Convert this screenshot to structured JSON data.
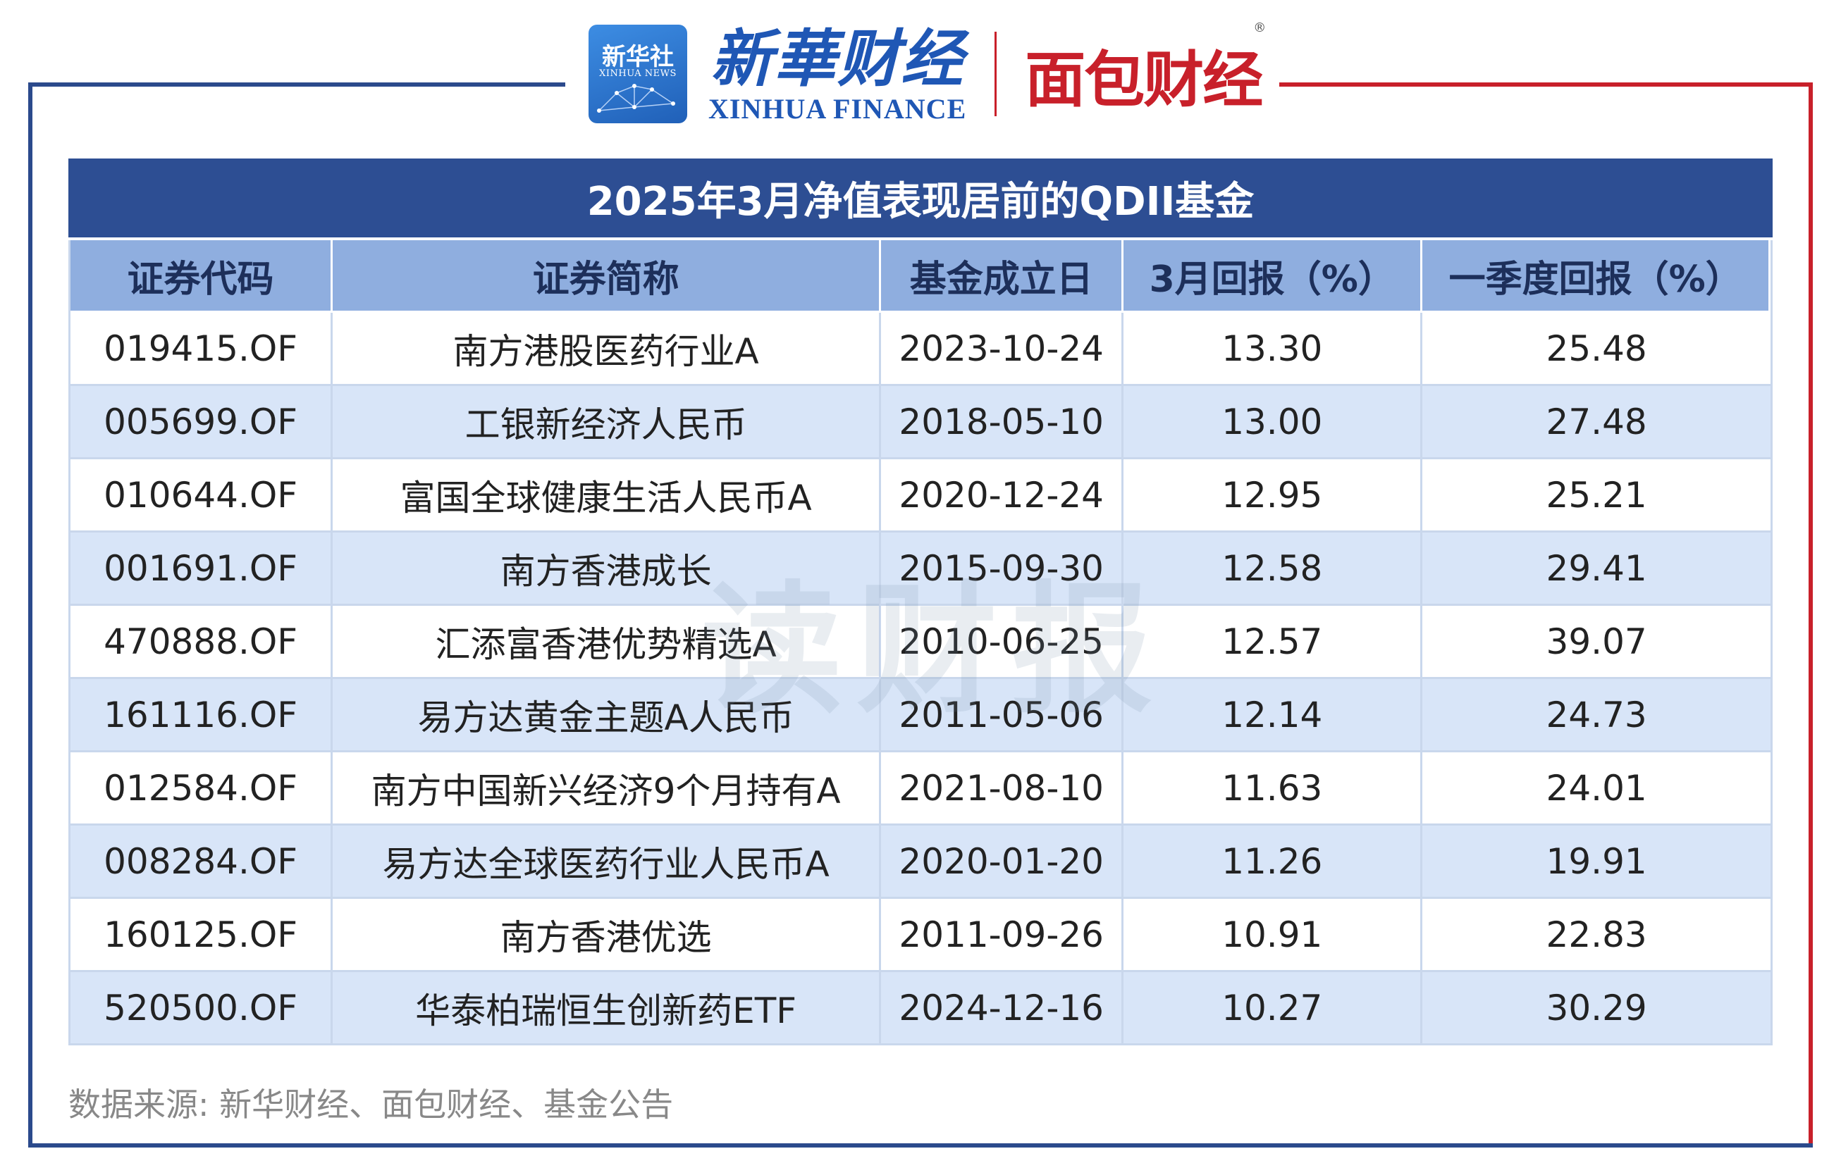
{
  "logos": {
    "xinhua_badge_cn": "新华社",
    "xinhua_badge_en": "XINHUA NEWS",
    "xinhua_finance_cn": "新華财经",
    "xinhua_finance_en": "XINHUA FINANCE",
    "mianbao_cn": "面包财经",
    "registered_mark": "®"
  },
  "watermark": "读财报",
  "colors": {
    "title_bg": "#2d4e93",
    "header_bg": "#8faedf",
    "row_alt_bg": "#d8e5f8",
    "frame_blue": "#2b4a8c",
    "frame_red": "#c8202a"
  },
  "chart_data": {
    "type": "table",
    "title": "2025年3月净值表现居前的QDII基金",
    "columns": [
      "证券代码",
      "证券简称",
      "基金成立日",
      "3月回报（%）",
      "一季度回报（%）"
    ],
    "rows": [
      [
        "019415.OF",
        "南方港股医药行业A",
        "2023-10-24",
        "13.30",
        "25.48"
      ],
      [
        "005699.OF",
        "工银新经济人民币",
        "2018-05-10",
        "13.00",
        "27.48"
      ],
      [
        "010644.OF",
        "富国全球健康生活人民币A",
        "2020-12-24",
        "12.95",
        "25.21"
      ],
      [
        "001691.OF",
        "南方香港成长",
        "2015-09-30",
        "12.58",
        "29.41"
      ],
      [
        "470888.OF",
        "汇添富香港优势精选A",
        "2010-06-25",
        "12.57",
        "39.07"
      ],
      [
        "161116.OF",
        "易方达黄金主题A人民币",
        "2011-05-06",
        "12.14",
        "24.73"
      ],
      [
        "012584.OF",
        "南方中国新兴经济9个月持有A",
        "2021-08-10",
        "11.63",
        "24.01"
      ],
      [
        "008284.OF",
        "易方达全球医药行业人民币A",
        "2020-01-20",
        "11.26",
        "19.91"
      ],
      [
        "160125.OF",
        "南方香港优选",
        "2011-09-26",
        "10.91",
        "22.83"
      ],
      [
        "520500.OF",
        "华泰柏瑞恒生创新药ETF",
        "2024-12-16",
        "10.27",
        "30.29"
      ]
    ]
  },
  "source": "数据来源: 新华财经、面包财经、基金公告"
}
